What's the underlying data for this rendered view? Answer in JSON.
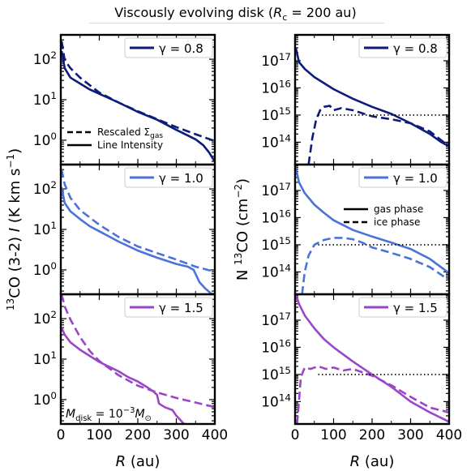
{
  "figure": {
    "title": "Viscously evolving disk (R_c = 200 au)",
    "xlabel": "R (au)",
    "left_ylabel": "13CO (3-2) I (K km s^-1)",
    "right_ylabel": "N 13CO (cm^-2)"
  },
  "chart_data": [
    {
      "type": "line",
      "panel": "intensity, gamma = 0.8",
      "legend": "γ = 0.8",
      "color": "#0d1b7a",
      "xlim": [
        0,
        400
      ],
      "ylim": [
        0.25,
        400
      ],
      "yscale": "log",
      "xticks": [
        0,
        100,
        200,
        300,
        400
      ],
      "yticks": [
        "10^0",
        "10^1",
        "10^2"
      ],
      "annotation_legend": [
        {
          "style": "dashed",
          "label": "Rescaled Σgas"
        },
        {
          "style": "solid",
          "label": "Line Intensity"
        }
      ],
      "series": [
        {
          "style": "solid",
          "x": [
            2,
            10,
            25,
            50,
            75,
            100,
            150,
            200,
            250,
            300,
            330,
            350,
            370,
            385,
            395,
            400
          ],
          "y": [
            160,
            60,
            35,
            25,
            18,
            14,
            8.5,
            5,
            3.2,
            1.8,
            1.3,
            1.05,
            0.75,
            0.5,
            0.35,
            0.3
          ]
        },
        {
          "style": "dashed",
          "x": [
            2,
            10,
            25,
            50,
            100,
            150,
            200,
            250,
            300,
            350,
            400
          ],
          "y": [
            280,
            95,
            60,
            35,
            15,
            8.5,
            5.2,
            3.3,
            2.1,
            1.4,
            0.95
          ]
        }
      ]
    },
    {
      "type": "line",
      "panel": "intensity, gamma = 1.0",
      "legend": "γ = 1.0",
      "color": "#4a72d8",
      "xlim": [
        0,
        400
      ],
      "ylim": [
        0.25,
        400
      ],
      "yscale": "log",
      "xticks": [
        0,
        100,
        200,
        300,
        400
      ],
      "yticks": [
        "10^0",
        "10^1",
        "10^2"
      ],
      "series": [
        {
          "style": "solid",
          "x": [
            2,
            10,
            25,
            50,
            75,
            100,
            150,
            200,
            250,
            300,
            330,
            345,
            360,
            375,
            390,
            400
          ],
          "y": [
            110,
            45,
            28,
            18,
            12,
            9,
            5,
            3,
            2,
            1.4,
            1.2,
            1.0,
            0.5,
            0.35,
            0.26,
            0.25
          ]
        },
        {
          "style": "dashed",
          "x": [
            2,
            10,
            25,
            50,
            100,
            150,
            200,
            250,
            300,
            350,
            400
          ],
          "y": [
            300,
            130,
            60,
            30,
            13,
            6.5,
            3.8,
            2.6,
            1.8,
            1.2,
            0.9
          ]
        }
      ]
    },
    {
      "type": "line",
      "panel": "intensity, gamma = 1.5",
      "legend": "γ = 1.5",
      "color": "#9b45c9",
      "xlim": [
        0,
        400
      ],
      "ylim": [
        0.25,
        400
      ],
      "yscale": "log",
      "xticks": [
        0,
        100,
        200,
        300,
        400
      ],
      "yticks": [
        "10^0",
        "10^1",
        "10^2"
      ],
      "annotation": "M_disk = 10^-3 M_⊙",
      "series": [
        {
          "style": "solid",
          "x": [
            2,
            10,
            25,
            50,
            75,
            100,
            125,
            150,
            175,
            200,
            225,
            240,
            250,
            255,
            270,
            290,
            300,
            320,
            340
          ],
          "y": [
            60,
            40,
            26,
            17,
            12,
            8.5,
            6.5,
            5,
            3.6,
            2.8,
            2.0,
            1.6,
            1.3,
            0.8,
            0.65,
            0.55,
            0.4,
            0.25,
            0.22
          ]
        },
        {
          "style": "dashed",
          "x": [
            2,
            10,
            25,
            50,
            75,
            100,
            150,
            200,
            250,
            300,
            350,
            400
          ],
          "y": [
            400,
            200,
            95,
            35,
            16,
            9,
            4,
            2.2,
            1.5,
            1.1,
            0.85,
            0.65
          ]
        }
      ]
    },
    {
      "type": "line",
      "panel": "column density, gamma = 0.8",
      "legend": "γ = 0.8",
      "color": "#0d1b7a",
      "xlim": [
        0,
        400
      ],
      "ylim": [
        15000000000000.0,
        9e+17
      ],
      "yscale": "log",
      "xticks": [
        0,
        100,
        200,
        300,
        400
      ],
      "yticks": [
        "10^14",
        "10^15",
        "10^16",
        "10^17"
      ],
      "reference_line_y": 1000000000000000.0,
      "series": [
        {
          "style": "solid",
          "x": [
            2,
            10,
            25,
            50,
            75,
            100,
            150,
            200,
            250,
            300,
            350,
            380,
            400
          ],
          "y": [
            3e+17,
            9e+16,
            5e+16,
            2.5e+16,
            1.5e+16,
            9000000000000000.0,
            4000000000000000.0,
            2000000000000000.0,
            1100000000000000.0,
            500000000000000.0,
            200000000000000.0,
            100000000000000.0,
            70000000000000.0
          ]
        },
        {
          "style": "dashed",
          "x": [
            35,
            45,
            55,
            65,
            75,
            90,
            100,
            120,
            150,
            200,
            250,
            300,
            350,
            400
          ],
          "y": [
            15000000000000.0,
            150000000000000.0,
            700000000000000.0,
            1500000000000000.0,
            2000000000000000.0,
            2200000000000000.0,
            1500000000000000.0,
            1800000000000000.0,
            1500000000000000.0,
            900000000000000.0,
            700000000000000.0,
            500000000000000.0,
            250000000000000.0,
            70000000000000.0
          ]
        },
        {
          "style": "dotted",
          "x": [
            60,
            400
          ],
          "y": [
            1000000000000000.0,
            1000000000000000.0
          ]
        }
      ]
    },
    {
      "type": "line",
      "panel": "column density, gamma = 1.0",
      "legend": "γ = 1.0",
      "color": "#4a72d8",
      "xlim": [
        0,
        400
      ],
      "ylim": [
        15000000000000.0,
        9e+17
      ],
      "yscale": "log",
      "xticks": [
        0,
        100,
        200,
        300,
        400
      ],
      "yticks": [
        "10^14",
        "10^15",
        "10^16",
        "10^17"
      ],
      "reference_line_y": 1000000000000000.0,
      "annotation_legend": [
        {
          "style": "solid",
          "label": "gas phase"
        },
        {
          "style": "dashed",
          "label": "ice phase"
        }
      ],
      "series": [
        {
          "style": "solid",
          "x": [
            2,
            10,
            25,
            50,
            75,
            100,
            150,
            200,
            250,
            300,
            350,
            400
          ],
          "y": [
            7e+17,
            2e+17,
            8e+16,
            3e+16,
            1.5e+16,
            8000000000000000.0,
            3500000000000000.0,
            2000000000000000.0,
            1200000000000000.0,
            700000000000000.0,
            300000000000000.0,
            90000000000000.0
          ]
        },
        {
          "style": "dashed",
          "x": [
            18,
            25,
            35,
            50,
            75,
            100,
            125,
            150,
            175,
            200,
            250,
            300,
            350,
            400
          ],
          "y": [
            15000000000000.0,
            100000000000000.0,
            400000000000000.0,
            1000000000000000.0,
            1500000000000000.0,
            1800000000000000.0,
            1800000000000000.0,
            1600000000000000.0,
            1200000000000000.0,
            800000000000000.0,
            500000000000000.0,
            300000000000000.0,
            150000000000000.0,
            50000000000000.0
          ]
        },
        {
          "style": "dotted",
          "x": [
            60,
            400
          ],
          "y": [
            1000000000000000.0,
            1000000000000000.0
          ]
        }
      ]
    },
    {
      "type": "line",
      "panel": "column density, gamma = 1.5",
      "legend": "γ = 1.5",
      "color": "#9b45c9",
      "xlim": [
        0,
        400
      ],
      "ylim": [
        15000000000000.0,
        9e+17
      ],
      "yscale": "log",
      "xticks": [
        0,
        100,
        200,
        300,
        400
      ],
      "yticks": [
        "10^14",
        "10^15",
        "10^16",
        "10^17"
      ],
      "reference_line_y": 1000000000000000.0,
      "series": [
        {
          "style": "solid",
          "x": [
            2,
            10,
            25,
            50,
            75,
            100,
            150,
            200,
            250,
            300,
            350,
            400
          ],
          "y": [
            9e+17,
            4e+17,
            1.5e+17,
            5e+16,
            2e+16,
            1e+16,
            3000000000000000.0,
            1000000000000000.0,
            350000000000000.0,
            100000000000000.0,
            40000000000000.0,
            18000000000000.0
          ]
        },
        {
          "style": "dashed",
          "x": [
            5,
            10,
            15,
            25,
            40,
            60,
            80,
            100,
            125,
            150,
            200,
            250,
            300,
            350,
            400
          ],
          "y": [
            15000000000000.0,
            100000000000000.0,
            800000000000000.0,
            1800000000000000.0,
            1600000000000000.0,
            2000000000000000.0,
            1600000000000000.0,
            1800000000000000.0,
            1400000000000000.0,
            1600000000000000.0,
            900000000000000.0,
            400000000000000.0,
            150000000000000.0,
            60000000000000.0,
            40000000000000.0
          ]
        },
        {
          "style": "dotted",
          "x": [
            60,
            400
          ],
          "y": [
            1000000000000000.0,
            1000000000000000.0
          ]
        }
      ]
    }
  ]
}
